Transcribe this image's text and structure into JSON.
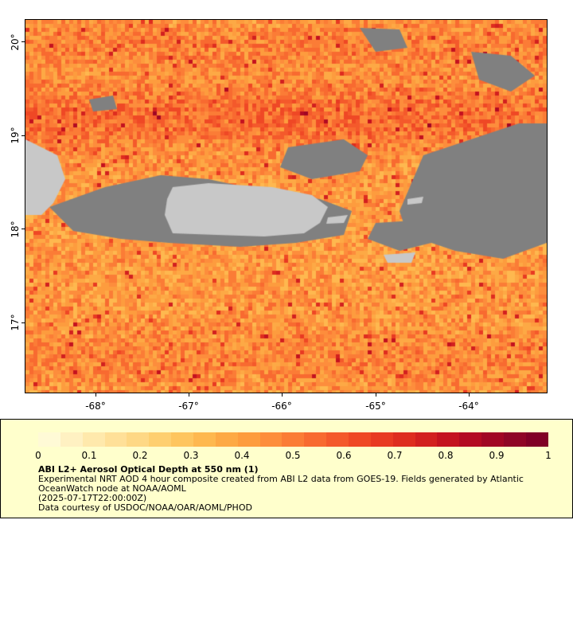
{
  "map": {
    "lat_labels": [
      "20°",
      "19°",
      "18°",
      "17°"
    ],
    "lon_labels": [
      "-68°",
      "-67°",
      "-66°",
      "-65°",
      "-64°"
    ],
    "colors": {
      "land": "#c8c8c8",
      "no_data": "#808080",
      "water_line": "#7fb4d8"
    }
  },
  "legend": {
    "tick_labels": [
      "0",
      "0.1",
      "0.2",
      "0.3",
      "0.4",
      "0.5",
      "0.6",
      "0.7",
      "0.8",
      "0.9",
      "1"
    ],
    "colors": [
      "#fffad6",
      "#fff1c2",
      "#ffe9ac",
      "#ffe098",
      "#fed885",
      "#fecf70",
      "#fec55e",
      "#feb84f",
      "#fda945",
      "#fd9c3e",
      "#fd8d3c",
      "#fb7c36",
      "#f86a30",
      "#f4592b",
      "#ef4825",
      "#e83a22",
      "#de2d1f",
      "#d2201f",
      "#c4121f",
      "#b30a22",
      "#a10624",
      "#8f0526",
      "#800026"
    ],
    "title": "ABI L2+ Aerosol Optical Depth at 550 nm (1)",
    "line1": "Experimental NRT AOD 4 hour composite created from ABI L2 data from GOES-19. Fields generated by Atlantic OceanWatch node at NOAA/AOML",
    "line2": "(2025-07-17T22:00:00Z)",
    "line3": "Data courtesy of USDOC/NOAA/OAR/AOML/PHOD"
  }
}
